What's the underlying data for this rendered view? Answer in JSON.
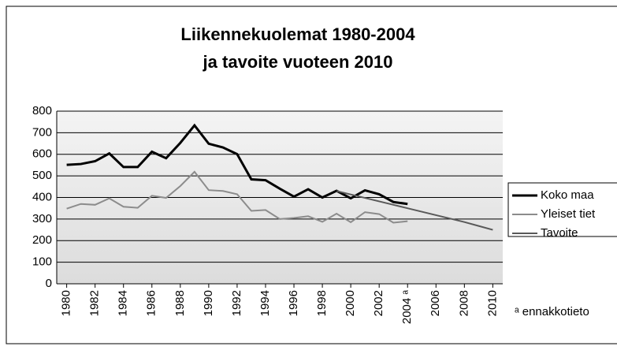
{
  "chart_data": {
    "type": "line",
    "title": "Liikennekuolemat 1980-2004",
    "subtitle": "ja tavoite vuoteen 2010",
    "annotation": "ᵃ ennakkotieto",
    "x": [
      1980,
      1981,
      1982,
      1983,
      1984,
      1985,
      1986,
      1987,
      1988,
      1989,
      1990,
      1991,
      1992,
      1993,
      1994,
      1995,
      1996,
      1997,
      1998,
      1999,
      2000,
      2001,
      2002,
      2003,
      2004,
      2005,
      2006,
      2007,
      2008,
      2009,
      2010
    ],
    "series": [
      {
        "name": "Koko maa",
        "color": "#000000",
        "values": [
          551,
          555,
          568,
          604,
          541,
          541,
          612,
          582,
          653,
          734,
          649,
          632,
          601,
          484,
          480,
          441,
          404,
          438,
          400,
          431,
          396,
          433,
          415,
          379,
          370,
          null,
          null,
          null,
          null,
          null,
          null
        ]
      },
      {
        "name": "Yleiset tiet",
        "color": "#8c8c8c",
        "values": [
          348,
          370,
          366,
          396,
          357,
          352,
          408,
          398,
          453,
          519,
          434,
          430,
          415,
          338,
          342,
          300,
          305,
          313,
          287,
          325,
          285,
          332,
          323,
          283,
          290,
          null,
          null,
          null,
          null,
          null,
          null
        ]
      },
      {
        "name": "Tavoite",
        "color": "#595959",
        "values": [
          null,
          null,
          null,
          null,
          null,
          null,
          null,
          null,
          null,
          null,
          null,
          null,
          null,
          null,
          null,
          null,
          null,
          null,
          null,
          430,
          414,
          398,
          382,
          366,
          350,
          334,
          318,
          302,
          286,
          268,
          250
        ]
      }
    ],
    "xlim": [
      1979.3,
      2010.7
    ],
    "xticks": [
      1980,
      1982,
      1984,
      1986,
      1988,
      1990,
      1992,
      1994,
      1996,
      1998,
      2000,
      2002,
      {
        "value": 2004,
        "label": "2004 ᵃ"
      },
      2006,
      2008,
      2010
    ],
    "ylim": [
      0,
      800
    ],
    "yticks": [
      0,
      100,
      200,
      300,
      400,
      500,
      600,
      700,
      800
    ],
    "grid": true,
    "legend": "right"
  }
}
